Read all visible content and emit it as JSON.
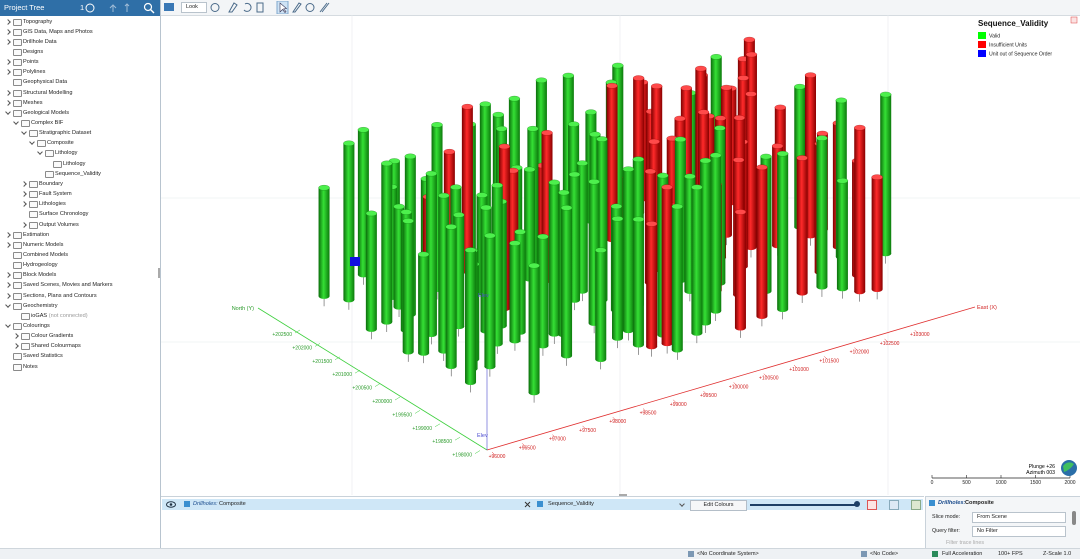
{
  "sidebar": {
    "title": "Project Tree",
    "count": "1",
    "items": [
      {
        "label": "Topography",
        "collapsed": true
      },
      {
        "label": "GIS Data, Maps and Photos",
        "collapsed": true
      },
      {
        "label": "Drillhole Data",
        "collapsed": true
      },
      {
        "label": "Designs"
      },
      {
        "label": "Points",
        "collapsed": true
      },
      {
        "label": "Polylines",
        "collapsed": true
      },
      {
        "label": "Geophysical Data"
      },
      {
        "label": "Structural Modelling",
        "collapsed": true
      },
      {
        "label": "Meshes",
        "collapsed": true
      },
      {
        "label": "Geological Models",
        "children": [
          {
            "label": "Complex BIF",
            "children": [
              {
                "label": "Stratigraphic Dataset",
                "children": [
                  {
                    "label": "Composite",
                    "children": [
                      {
                        "label": "Lithology",
                        "children": [
                          {
                            "label": "Lithology"
                          }
                        ]
                      },
                      {
                        "label": "Sequence_Validity"
                      }
                    ]
                  }
                ]
              },
              {
                "label": "Boundary",
                "collapsed": true
              },
              {
                "label": "Fault System",
                "collapsed": true
              },
              {
                "label": "Lithologies",
                "collapsed": true
              },
              {
                "label": "Surface Chronology"
              },
              {
                "label": "Output Volumes",
                "collapsed": true
              }
            ]
          }
        ]
      },
      {
        "label": "Estimation",
        "collapsed": true
      },
      {
        "label": "Numeric Models",
        "collapsed": true
      },
      {
        "label": "Combined Models"
      },
      {
        "label": "Hydrogeology"
      },
      {
        "label": "Block Models",
        "collapsed": true
      },
      {
        "label": "Saved Scenes, Movies and Markers",
        "collapsed": true
      },
      {
        "label": "Sections, Plans and Contours",
        "collapsed": true
      },
      {
        "label": "Geochemistry",
        "children": [
          {
            "label": "ioGAS",
            "note": "(not connected)"
          }
        ]
      },
      {
        "label": "Colourings",
        "children": [
          {
            "label": "Colour Gradients",
            "collapsed": true
          },
          {
            "label": "Shared Colourmaps",
            "collapsed": true
          }
        ]
      },
      {
        "label": "Saved Statistics"
      },
      {
        "label": "Notes"
      }
    ]
  },
  "toolbar": {
    "look": "Look"
  },
  "scene": {
    "legend": {
      "title": "Sequence_Validity",
      "items": [
        {
          "label": "Valid",
          "color": "#00ff00"
        },
        {
          "label": "Insufficient Units",
          "color": "#ff0000"
        },
        {
          "label": "Unit out of Sequence Order",
          "color": "#0000ff"
        }
      ]
    },
    "north_axis": {
      "label": "North (Y)",
      "ticks": [
        "+202500",
        "+202000",
        "+201500",
        "+201000",
        "+200500",
        "+200000",
        "+199500",
        "+199000",
        "+198500",
        "+198000"
      ]
    },
    "east_axis": {
      "label": "East (X)",
      "ticks": [
        "+96000",
        "+96500",
        "+97000",
        "+97500",
        "+98000",
        "+98500",
        "+99000",
        "+99500",
        "+100000",
        "+100500",
        "+101000",
        "+101500",
        "+102000",
        "+102500",
        "+103000"
      ]
    },
    "elev_axis": {
      "label": "Elev",
      "tick": "Elev"
    },
    "scale_bar": [
      "0",
      "500",
      "1000",
      "1500",
      "2000"
    ],
    "orientation": {
      "plunge": "Plunge +26",
      "azimuth": "Azimuth 003"
    }
  },
  "layer_panel": {
    "prefix": "Drillholes:",
    "name": "Composite",
    "colouring": "Sequence_Validity",
    "edit_button": "Edit Colours"
  },
  "properties": {
    "prefix": "Drillholes:",
    "name": "Composite",
    "slice_label": "Slice mode:",
    "slice_value": "From Scene",
    "filter_label": "Query filter:",
    "filter_value": "No Filter",
    "trace_option": "Filter trace lines"
  },
  "status_bar": {
    "coordinate_system": "<No Coordinate System>",
    "code": "<No Code>",
    "acceleration": "Full Acceleration",
    "fps": "100+ FPS",
    "z_scale": "Z-Scale 1.0"
  }
}
